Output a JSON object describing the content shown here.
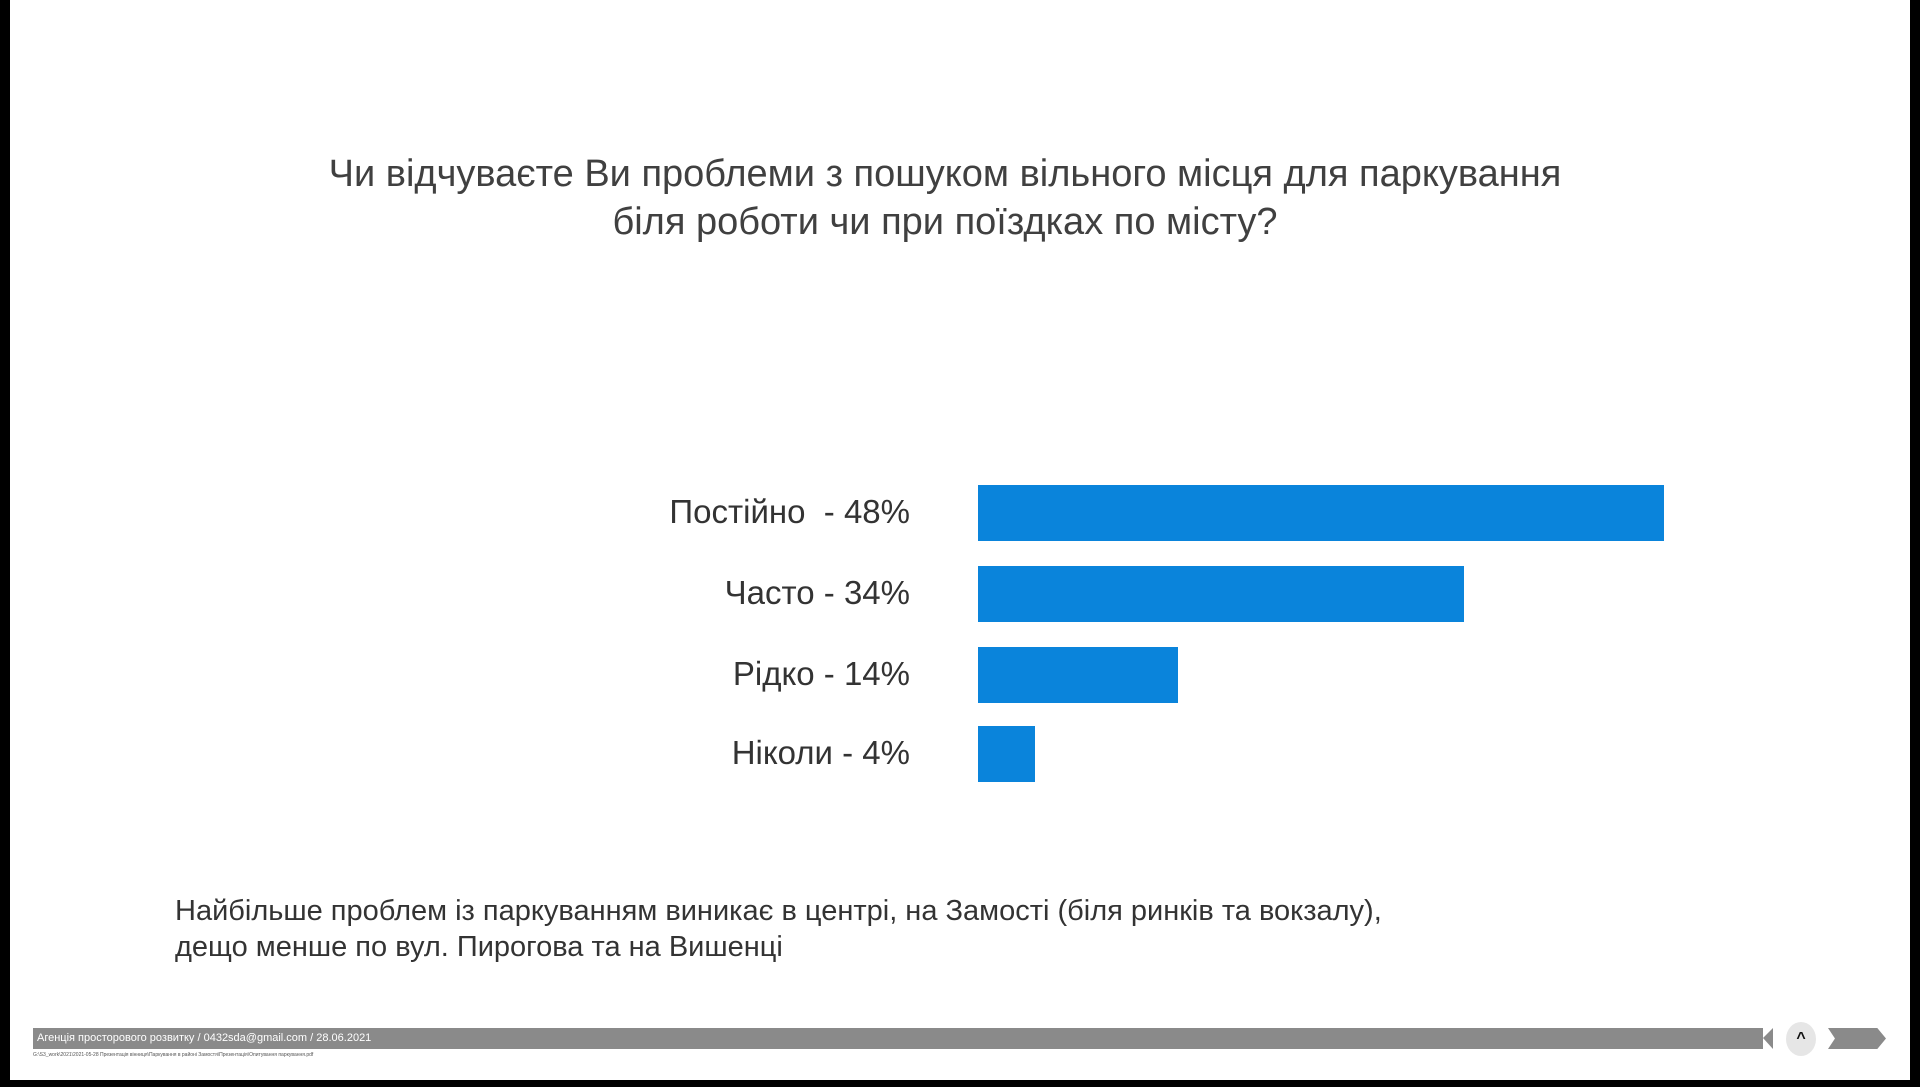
{
  "chart_data": {
    "type": "bar",
    "orientation": "horizontal",
    "title": "Чи відчуваєте Ви проблеми з пошуком вільного місця для паркування біля роботи чи при поїздках по місту?",
    "title_lines": [
      "Чи відчуваєте Ви проблеми з пошуком вільного місця для паркування",
      "біля роботи чи при поїздках по місту?"
    ],
    "categories": [
      "Постійно  - 48%",
      "Часто - 34%",
      "Рідко - 14%",
      "Ніколи - 4%"
    ],
    "values": [
      48,
      34,
      14,
      4
    ],
    "unit": "%",
    "xlim": [
      0,
      48
    ],
    "grid": false,
    "bar_color": "#0a84db"
  },
  "note_lines": [
    "Найбільше проблем із паркуванням виникає в центрі, на Замості (біля ринків та вокзалу),",
    "дещо менше по вул. Пирогова та на Вишенці"
  ],
  "footer": {
    "text": "Агенція просторового розвитку / 0432sda@gmail.com / 28.06.2021",
    "path": "G:\\S3_work\\2021\\2021-05-28 Презентація вінниця\\Паркування в районі Замостя\\Презентація\\Опитування паркування.pdf",
    "nav_icon": "chevron-up-icon"
  }
}
